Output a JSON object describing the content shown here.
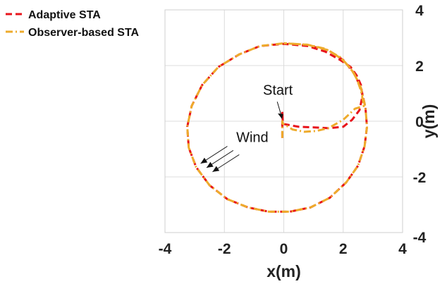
{
  "chart_data": {
    "type": "line",
    "title": "",
    "xlabel": "x(m)",
    "ylabel": "y(m)",
    "xlim": [
      -4,
      4
    ],
    "ylim": [
      -4,
      4
    ],
    "x_ticks": [
      "-4",
      "-2",
      "0",
      "2",
      "4"
    ],
    "y_ticks": [
      "-4",
      "-2",
      "0",
      "2",
      "4"
    ],
    "grid": true,
    "legend_position": "top-left, outside plot",
    "annotations": {
      "start": "Start",
      "wind": "Wind"
    },
    "series": [
      {
        "name": "Adaptive STA",
        "color": "#e8141b",
        "dash": "dashed",
        "points": [
          [
            -0.05,
            -0.6
          ],
          [
            -0.05,
            0.0
          ],
          [
            -0.05,
            0.35
          ],
          [
            -0.03,
            -0.1
          ],
          [
            0.0,
            -0.1
          ],
          [
            0.5,
            -0.2
          ],
          [
            1.0,
            -0.22
          ],
          [
            1.5,
            -0.25
          ],
          [
            2.0,
            -0.2
          ],
          [
            2.3,
            0.05
          ],
          [
            2.55,
            0.4
          ],
          [
            2.65,
            0.9
          ],
          [
            2.6,
            1.3
          ],
          [
            2.45,
            1.65
          ],
          [
            2.25,
            1.95
          ],
          [
            1.9,
            2.2
          ],
          [
            1.4,
            2.5
          ],
          [
            0.8,
            2.7
          ],
          [
            0.0,
            2.78
          ],
          [
            -0.8,
            2.7
          ],
          [
            -1.5,
            2.4
          ],
          [
            -2.2,
            1.95
          ],
          [
            -2.75,
            1.3
          ],
          [
            -3.1,
            0.55
          ],
          [
            -3.25,
            -0.2
          ],
          [
            -3.2,
            -0.95
          ],
          [
            -2.95,
            -1.65
          ],
          [
            -2.5,
            -2.3
          ],
          [
            -1.9,
            -2.8
          ],
          [
            -1.2,
            -3.1
          ],
          [
            -0.5,
            -3.25
          ],
          [
            0.2,
            -3.25
          ],
          [
            0.9,
            -3.1
          ],
          [
            1.55,
            -2.75
          ],
          [
            2.1,
            -2.2
          ],
          [
            2.5,
            -1.6
          ],
          [
            2.72,
            -0.9
          ],
          [
            2.8,
            -0.2
          ],
          [
            2.75,
            0.5
          ],
          [
            2.6,
            1.2
          ],
          [
            2.35,
            1.75
          ],
          [
            2.0,
            2.2
          ],
          [
            1.5,
            2.55
          ],
          [
            0.8,
            2.72
          ],
          [
            0.0,
            2.78
          ]
        ]
      },
      {
        "name": "Observer-based STA",
        "color": "#eeab2c",
        "dash": "dash-dot",
        "points": [
          [
            -0.05,
            -0.6
          ],
          [
            -0.05,
            0.0
          ],
          [
            -0.03,
            -0.1
          ],
          [
            0.0,
            -0.1
          ],
          [
            0.3,
            -0.3
          ],
          [
            0.7,
            -0.38
          ],
          [
            1.1,
            -0.35
          ],
          [
            1.5,
            -0.25
          ],
          [
            2.0,
            0.05
          ],
          [
            2.4,
            0.45
          ],
          [
            2.7,
            0.55
          ],
          [
            2.6,
            1.1
          ],
          [
            2.45,
            1.55
          ],
          [
            2.25,
            1.9
          ],
          [
            1.9,
            2.3
          ],
          [
            1.4,
            2.6
          ],
          [
            0.8,
            2.75
          ],
          [
            0.0,
            2.8
          ],
          [
            -0.8,
            2.7
          ],
          [
            -1.5,
            2.4
          ],
          [
            -2.2,
            1.95
          ],
          [
            -2.75,
            1.3
          ],
          [
            -3.1,
            0.55
          ],
          [
            -3.25,
            -0.2
          ],
          [
            -3.2,
            -0.95
          ],
          [
            -2.95,
            -1.65
          ],
          [
            -2.5,
            -2.3
          ],
          [
            -1.9,
            -2.8
          ],
          [
            -1.2,
            -3.1
          ],
          [
            -0.5,
            -3.25
          ],
          [
            0.2,
            -3.25
          ],
          [
            0.9,
            -3.1
          ],
          [
            1.55,
            -2.75
          ],
          [
            2.1,
            -2.2
          ],
          [
            2.5,
            -1.6
          ],
          [
            2.72,
            -0.9
          ],
          [
            2.8,
            -0.2
          ],
          [
            2.75,
            0.5
          ],
          [
            2.6,
            1.2
          ],
          [
            2.35,
            1.75
          ],
          [
            2.0,
            2.2
          ],
          [
            1.5,
            2.55
          ],
          [
            0.8,
            2.75
          ],
          [
            0.0,
            2.8
          ]
        ]
      }
    ]
  }
}
